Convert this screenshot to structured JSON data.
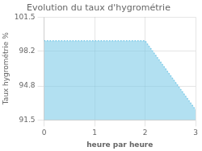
{
  "chart_data": {
    "type": "area",
    "title": "Evolution du taux d'hygrométrie",
    "xlabel": "heure par heure",
    "ylabel": "Taux hygrométrie %",
    "x": [
      0,
      2,
      3
    ],
    "values": [
      99.2,
      99.2,
      92.5
    ],
    "color": "#7ecbe8",
    "line_style": "dotted",
    "xlim": [
      0,
      3
    ],
    "xticks": [
      0,
      1,
      2,
      3
    ],
    "ylim": [
      91.5,
      101.5
    ],
    "yticks": [
      91.5,
      94.8,
      98.2,
      101.5
    ],
    "grid": true
  }
}
